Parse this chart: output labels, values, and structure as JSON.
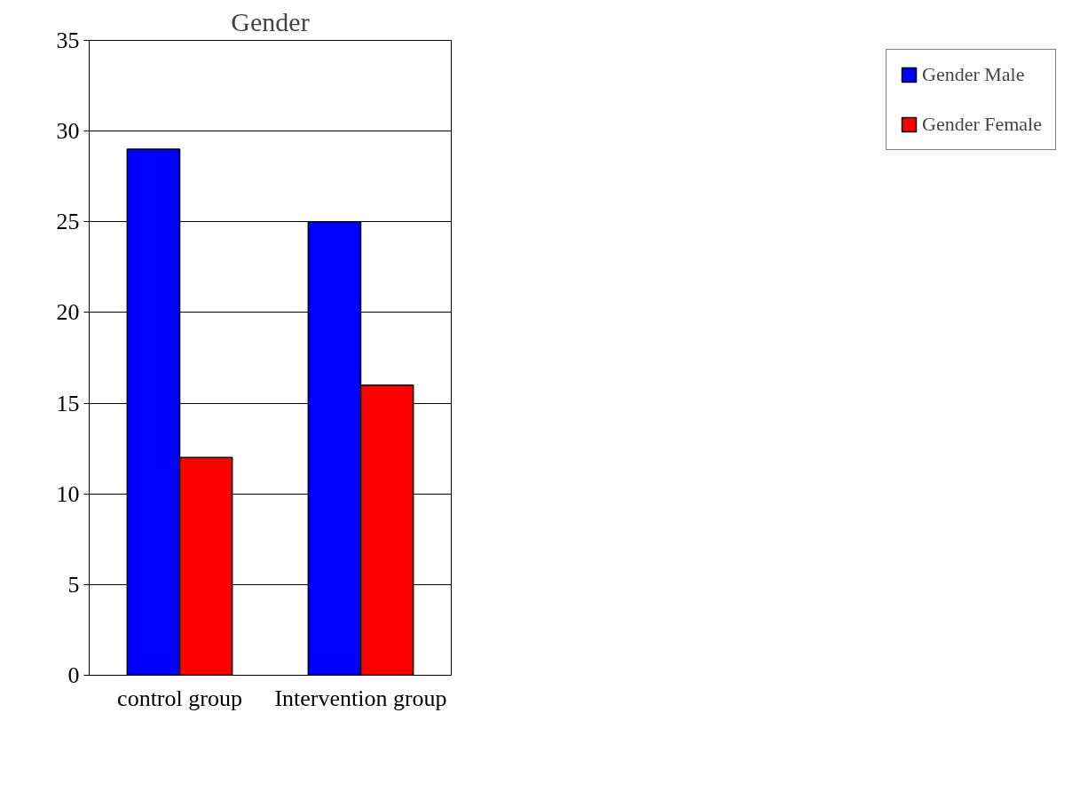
{
  "chart_data": {
    "type": "bar",
    "title": "Gender",
    "categories": [
      "control group",
      "Intervention group"
    ],
    "series": [
      {
        "name": "Gender Male",
        "color": "#0000ff",
        "values": [
          29,
          25
        ]
      },
      {
        "name": "Gender Female",
        "color": "#ff0000",
        "values": [
          12,
          16
        ]
      }
    ],
    "ylim": [
      0,
      35
    ],
    "yticks": [
      0,
      5,
      10,
      15,
      20,
      25,
      30,
      35
    ],
    "grid": "y",
    "legend": "right"
  }
}
